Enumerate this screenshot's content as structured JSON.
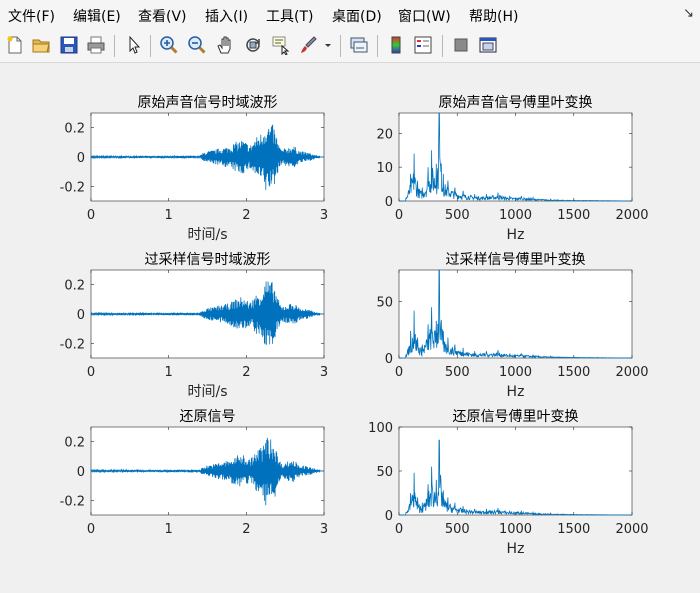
{
  "menu": [
    "文件(F)",
    "编辑(E)",
    "查看(V)",
    "插入(I)",
    "工具(T)",
    "桌面(D)",
    "窗口(W)",
    "帮助(H)"
  ],
  "toolbar": {
    "icons": [
      "new-file-icon",
      "open-folder-icon",
      "save-icon",
      "print-icon",
      "cursor-icon",
      "zoom-in-icon",
      "zoom-out-icon",
      "pan-hand-icon",
      "rotate-3d-icon",
      "data-cursor-icon",
      "brush-icon",
      "dropdown-arrow-icon",
      "link-plot-icon",
      "colorbar-icon",
      "legend-icon",
      "hide-plot-tools-icon",
      "show-plot-tools-icon"
    ]
  },
  "accent_color": "#0072bd",
  "chart_data": [
    {
      "type": "line",
      "title": "原始声音信号时域波形",
      "xlabel": "时间/s",
      "ylabel": "",
      "xlim": [
        0,
        3
      ],
      "ylim": [
        -0.3,
        0.3
      ],
      "xticks": [
        0,
        1,
        2,
        3
      ],
      "yticks": [
        0.2,
        0,
        -0.2
      ],
      "xtick_labels": [
        "0",
        "1",
        "2",
        "3"
      ],
      "ytick_labels": [
        "0.2",
        "0",
        "-0.2"
      ],
      "series": [
        {
          "segments": [
            [
              0,
              0.005
            ],
            [
              1.4,
              0.01
            ],
            [
              1.45,
              0.03
            ],
            [
              1.5,
              -0.04
            ],
            [
              1.6,
              0.05
            ],
            [
              1.65,
              -0.06
            ],
            [
              1.75,
              0.07
            ],
            [
              1.8,
              -0.08
            ],
            [
              1.85,
              0.1
            ],
            [
              1.9,
              -0.11
            ],
            [
              1.95,
              0.12
            ],
            [
              2.0,
              -0.1
            ],
            [
              2.05,
              0.08
            ],
            [
              2.1,
              -0.12
            ],
            [
              2.15,
              0.15
            ],
            [
              2.2,
              -0.17
            ],
            [
              2.25,
              0.25
            ],
            [
              2.3,
              -0.22
            ],
            [
              2.35,
              0.22
            ],
            [
              2.4,
              -0.12
            ],
            [
              2.45,
              0.05
            ],
            [
              2.5,
              -0.06
            ],
            [
              2.55,
              0.07
            ],
            [
              2.6,
              -0.08
            ],
            [
              2.65,
              0.06
            ],
            [
              2.7,
              -0.04
            ],
            [
              2.8,
              0.03
            ],
            [
              2.85,
              -0.02
            ],
            [
              2.95,
              0.005
            ]
          ]
        }
      ]
    },
    {
      "type": "line",
      "title": "原始声音信号傅里叶变换",
      "xlabel": "Hz",
      "ylabel": "",
      "xlim": [
        0,
        2000
      ],
      "ylim": [
        0,
        26
      ],
      "xticks": [
        0,
        500,
        1000,
        1500,
        2000
      ],
      "yticks": [
        0,
        10,
        20
      ],
      "xtick_labels": [
        "0",
        "500",
        "1000",
        "1500",
        "2000"
      ],
      "ytick_labels": [
        "0",
        "10",
        "20"
      ],
      "series": [
        {
          "peaks": [
            [
              60,
              1
            ],
            [
              100,
              8
            ],
            [
              130,
              14
            ],
            [
              160,
              6
            ],
            [
              200,
              4
            ],
            [
              250,
              10
            ],
            [
              280,
              15
            ],
            [
              320,
              11
            ],
            [
              345,
              26
            ],
            [
              380,
              8
            ],
            [
              420,
              6
            ],
            [
              480,
              4
            ],
            [
              550,
              3
            ],
            [
              650,
              2
            ],
            [
              750,
              2
            ],
            [
              850,
              2.5
            ],
            [
              950,
              1.5
            ],
            [
              1050,
              1.5
            ],
            [
              1150,
              1
            ],
            [
              1300,
              0.5
            ],
            [
              1500,
              0.3
            ],
            [
              1700,
              0.2
            ],
            [
              2000,
              0
            ]
          ]
        }
      ]
    },
    {
      "type": "line",
      "title": "过采样信号时域波形",
      "xlabel": "时间/s",
      "ylabel": "",
      "xlim": [
        0,
        3
      ],
      "ylim": [
        -0.3,
        0.3
      ],
      "xticks": [
        0,
        1,
        2,
        3
      ],
      "yticks": [
        0.2,
        0,
        -0.2
      ],
      "xtick_labels": [
        "0",
        "1",
        "2",
        "3"
      ],
      "ytick_labels": [
        "0.2",
        "0",
        "-0.2"
      ],
      "series": [
        {
          "segments": [
            [
              0,
              0.005
            ],
            [
              1.4,
              0.01
            ],
            [
              1.45,
              0.03
            ],
            [
              1.5,
              -0.04
            ],
            [
              1.6,
              0.05
            ],
            [
              1.65,
              -0.06
            ],
            [
              1.75,
              0.07
            ],
            [
              1.8,
              -0.08
            ],
            [
              1.85,
              0.1
            ],
            [
              1.9,
              -0.11
            ],
            [
              1.95,
              0.12
            ],
            [
              2.0,
              -0.1
            ],
            [
              2.05,
              0.08
            ],
            [
              2.1,
              -0.12
            ],
            [
              2.15,
              0.15
            ],
            [
              2.2,
              -0.17
            ],
            [
              2.25,
              0.25
            ],
            [
              2.3,
              -0.22
            ],
            [
              2.35,
              0.22
            ],
            [
              2.4,
              -0.12
            ],
            [
              2.45,
              0.05
            ],
            [
              2.5,
              -0.06
            ],
            [
              2.55,
              0.07
            ],
            [
              2.6,
              -0.08
            ],
            [
              2.65,
              0.06
            ],
            [
              2.7,
              -0.04
            ],
            [
              2.8,
              0.03
            ],
            [
              2.85,
              -0.02
            ],
            [
              2.95,
              0.005
            ]
          ]
        }
      ]
    },
    {
      "type": "line",
      "title": "过采样信号傅里叶变换",
      "xlabel": "Hz",
      "ylabel": "",
      "xlim": [
        0,
        2000
      ],
      "ylim": [
        0,
        78
      ],
      "xticks": [
        0,
        500,
        1000,
        1500,
        2000
      ],
      "yticks": [
        0,
        50
      ],
      "xtick_labels": [
        "0",
        "500",
        "1000",
        "1500",
        "2000"
      ],
      "ytick_labels": [
        "0",
        "50"
      ],
      "series": [
        {
          "peaks": [
            [
              60,
              3
            ],
            [
              100,
              24
            ],
            [
              130,
              42
            ],
            [
              160,
              18
            ],
            [
              200,
              12
            ],
            [
              250,
              30
            ],
            [
              280,
              45
            ],
            [
              320,
              33
            ],
            [
              345,
              78
            ],
            [
              380,
              24
            ],
            [
              420,
              18
            ],
            [
              480,
              12
            ],
            [
              550,
              9
            ],
            [
              650,
              6
            ],
            [
              750,
              6
            ],
            [
              850,
              7
            ],
            [
              950,
              4
            ],
            [
              1050,
              4
            ],
            [
              1150,
              3
            ],
            [
              1300,
              1.5
            ],
            [
              1500,
              1
            ],
            [
              1700,
              0.5
            ],
            [
              2000,
              0
            ]
          ]
        }
      ]
    },
    {
      "type": "line",
      "title": "还原信号",
      "xlabel": "",
      "ylabel": "",
      "xlim": [
        0,
        3
      ],
      "ylim": [
        -0.3,
        0.3
      ],
      "xticks": [
        0,
        1,
        2,
        3
      ],
      "yticks": [
        0.2,
        0,
        -0.2
      ],
      "xtick_labels": [
        "0",
        "1",
        "2",
        "3"
      ],
      "ytick_labels": [
        "0.2",
        "0",
        "-0.2"
      ],
      "series": [
        {
          "segments": [
            [
              0,
              0.005
            ],
            [
              1.4,
              0.01
            ],
            [
              1.45,
              0.03
            ],
            [
              1.5,
              -0.04
            ],
            [
              1.6,
              0.05
            ],
            [
              1.65,
              -0.06
            ],
            [
              1.75,
              0.07
            ],
            [
              1.8,
              -0.08
            ],
            [
              1.85,
              0.1
            ],
            [
              1.9,
              -0.11
            ],
            [
              1.95,
              0.12
            ],
            [
              2.0,
              -0.1
            ],
            [
              2.05,
              0.08
            ],
            [
              2.1,
              -0.12
            ],
            [
              2.15,
              0.15
            ],
            [
              2.2,
              -0.17
            ],
            [
              2.25,
              0.25
            ],
            [
              2.3,
              -0.22
            ],
            [
              2.35,
              0.22
            ],
            [
              2.4,
              -0.12
            ],
            [
              2.45,
              0.05
            ],
            [
              2.5,
              -0.06
            ],
            [
              2.55,
              0.07
            ],
            [
              2.6,
              -0.08
            ],
            [
              2.65,
              0.06
            ],
            [
              2.7,
              -0.04
            ],
            [
              2.8,
              0.03
            ],
            [
              2.85,
              -0.02
            ],
            [
              2.95,
              0.005
            ]
          ]
        }
      ]
    },
    {
      "type": "line",
      "title": "还原信号傅里叶变换",
      "xlabel": "Hz",
      "ylabel": "",
      "xlim": [
        0,
        2000
      ],
      "ylim": [
        0,
        100
      ],
      "xticks": [
        0,
        500,
        1000,
        1500,
        2000
      ],
      "yticks": [
        0,
        50,
        100
      ],
      "xtick_labels": [
        "0",
        "500",
        "1000",
        "1500",
        "2000"
      ],
      "ytick_labels": [
        "0",
        "50",
        "100"
      ],
      "series": [
        {
          "peaks": [
            [
              60,
              3
            ],
            [
              100,
              25
            ],
            [
              130,
              48
            ],
            [
              160,
              20
            ],
            [
              200,
              14
            ],
            [
              250,
              35
            ],
            [
              280,
              55
            ],
            [
              320,
              40
            ],
            [
              345,
              85
            ],
            [
              380,
              28
            ],
            [
              420,
              20
            ],
            [
              480,
              14
            ],
            [
              550,
              10
            ],
            [
              650,
              7
            ],
            [
              750,
              7
            ],
            [
              850,
              8
            ],
            [
              950,
              5
            ],
            [
              1050,
              5
            ],
            [
              1150,
              3
            ],
            [
              1300,
              2
            ],
            [
              1500,
              1
            ],
            [
              1700,
              0.5
            ],
            [
              2000,
              0
            ]
          ]
        }
      ]
    }
  ]
}
